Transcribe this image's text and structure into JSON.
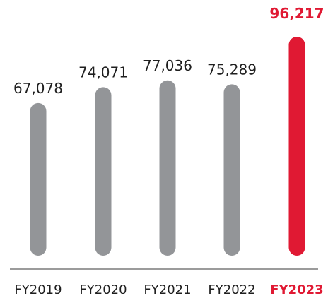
{
  "chart_data": {
    "type": "bar",
    "categories": [
      "FY2019",
      "FY2020",
      "FY2021",
      "FY2022",
      "FY2023"
    ],
    "values": [
      67078,
      74071,
      77036,
      75289,
      96217
    ],
    "value_labels": [
      "67,078",
      "74,071",
      "77,036",
      "75,289",
      "96,217"
    ],
    "highlight_index": 4,
    "colors": {
      "bar": "#939598",
      "highlight": "#e01933",
      "text": "#1f1f1f",
      "axis": "#7a7a7a"
    },
    "title": "",
    "xlabel": "",
    "ylabel": "",
    "ylim": [
      0,
      96217
    ],
    "grid": false,
    "legend": "none"
  }
}
